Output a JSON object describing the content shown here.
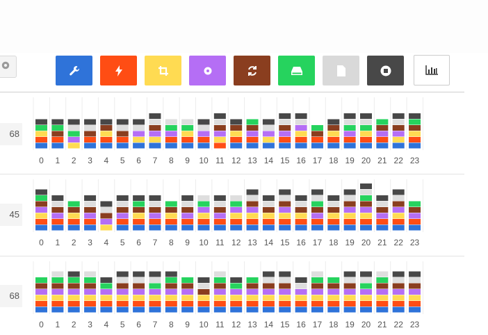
{
  "toolbar": {
    "buttons": [
      {
        "name": "wrench-button",
        "icon": "wrench-icon",
        "color": "#2f73d9"
      },
      {
        "name": "lightning-button",
        "icon": "lightning-icon",
        "color": "#ff4d14"
      },
      {
        "name": "crop-button",
        "icon": "crop-icon",
        "color": "#ffdb52"
      },
      {
        "name": "settings-button",
        "icon": "gear-icon",
        "color": "#b56ef5"
      },
      {
        "name": "refresh-button",
        "icon": "refresh-icon",
        "color": "#8a3e1f"
      },
      {
        "name": "drive-button",
        "icon": "hard-drive-icon",
        "color": "#26d35e"
      },
      {
        "name": "file-button",
        "icon": "file-icon",
        "color": "#d9d9d9"
      },
      {
        "name": "stop-button",
        "icon": "stop-icon",
        "color": "#484848"
      },
      {
        "name": "chart-button",
        "icon": "bar-chart-icon",
        "color": "#ffffff"
      }
    ]
  },
  "rows": [
    {
      "value": "68"
    },
    {
      "value": "45"
    },
    {
      "value": "68"
    }
  ],
  "chart_data": [
    {
      "type": "bar",
      "stacked": true,
      "categories": [
        "0",
        "1",
        "2",
        "3",
        "4",
        "5",
        "6",
        "7",
        "8",
        "9",
        "10",
        "11",
        "12",
        "13",
        "14",
        "15",
        "16",
        "17",
        "18",
        "19",
        "20",
        "21",
        "22",
        "23"
      ],
      "series_colors": [
        "#2f73d9",
        "#ff4d14",
        "#ffdb52",
        "#b56ef5",
        "#8a3e1f",
        "#26d35e",
        "#dedede",
        "#484848"
      ],
      "values": [
        [
          1,
          1,
          1,
          0,
          0,
          1,
          0,
          1
        ],
        [
          1,
          1,
          0,
          0,
          1,
          1,
          0,
          1
        ],
        [
          0,
          0,
          1,
          1,
          0,
          1,
          1,
          1
        ],
        [
          1,
          1,
          0,
          0,
          1,
          0,
          1,
          1
        ],
        [
          1,
          1,
          1,
          0,
          1,
          0,
          0,
          1
        ],
        [
          1,
          1,
          0,
          0,
          1,
          0,
          1,
          1
        ],
        [
          1,
          0,
          1,
          1,
          0,
          0,
          1,
          1
        ],
        [
          1,
          0,
          1,
          1,
          1,
          0,
          1,
          1
        ],
        [
          1,
          1,
          0,
          1,
          0,
          1,
          1,
          0
        ],
        [
          1,
          1,
          1,
          0,
          0,
          1,
          1,
          0
        ],
        [
          1,
          1,
          0,
          1,
          0,
          0,
          1,
          1
        ],
        [
          0,
          1,
          1,
          1,
          1,
          0,
          1,
          1
        ],
        [
          1,
          1,
          1,
          0,
          1,
          0,
          0,
          1
        ],
        [
          1,
          1,
          0,
          1,
          1,
          1,
          0,
          0
        ],
        [
          1,
          0,
          1,
          1,
          0,
          0,
          1,
          1
        ],
        [
          1,
          1,
          0,
          1,
          1,
          0,
          1,
          1
        ],
        [
          1,
          1,
          1,
          1,
          0,
          0,
          1,
          1
        ],
        [
          1,
          1,
          0,
          0,
          1,
          1,
          0,
          0
        ],
        [
          1,
          1,
          1,
          0,
          1,
          0,
          0,
          1
        ],
        [
          1,
          1,
          0,
          1,
          0,
          1,
          1,
          1
        ],
        [
          1,
          1,
          1,
          0,
          0,
          1,
          1,
          1
        ],
        [
          1,
          1,
          0,
          1,
          1,
          1,
          0,
          0
        ],
        [
          1,
          0,
          1,
          1,
          1,
          0,
          1,
          1
        ],
        [
          1,
          1,
          1,
          0,
          1,
          1,
          0,
          1
        ]
      ]
    },
    {
      "type": "bar",
      "stacked": true,
      "categories": [
        "0",
        "1",
        "2",
        "3",
        "4",
        "5",
        "6",
        "7",
        "8",
        "9",
        "10",
        "11",
        "12",
        "13",
        "14",
        "15",
        "16",
        "17",
        "18",
        "19",
        "20",
        "21",
        "22",
        "23"
      ],
      "series_colors": [
        "#2f73d9",
        "#ff4d14",
        "#ffdb52",
        "#b56ef5",
        "#8a3e1f",
        "#26d35e",
        "#dedede",
        "#484848"
      ],
      "values": [
        [
          1,
          1,
          1,
          1,
          1,
          1,
          0,
          1
        ],
        [
          1,
          1,
          0,
          1,
          1,
          0,
          1,
          1
        ],
        [
          1,
          1,
          1,
          0,
          1,
          1,
          0,
          0
        ],
        [
          1,
          1,
          0,
          1,
          1,
          0,
          1,
          1
        ],
        [
          0,
          0,
          1,
          1,
          1,
          0,
          1,
          1
        ],
        [
          1,
          1,
          0,
          1,
          1,
          0,
          1,
          1
        ],
        [
          1,
          1,
          1,
          0,
          1,
          1,
          0,
          1
        ],
        [
          1,
          1,
          0,
          1,
          1,
          0,
          1,
          1
        ],
        [
          1,
          1,
          1,
          0,
          1,
          1,
          0,
          0
        ],
        [
          1,
          1,
          0,
          1,
          1,
          0,
          1,
          1
        ],
        [
          1,
          1,
          1,
          1,
          0,
          1,
          1,
          0
        ],
        [
          1,
          1,
          0,
          1,
          1,
          0,
          1,
          1
        ],
        [
          1,
          1,
          1,
          1,
          0,
          1,
          1,
          0
        ],
        [
          1,
          1,
          1,
          1,
          1,
          0,
          1,
          1
        ],
        [
          1,
          1,
          1,
          0,
          1,
          0,
          1,
          1
        ],
        [
          1,
          1,
          1,
          1,
          1,
          0,
          1,
          1
        ],
        [
          1,
          1,
          1,
          0,
          1,
          0,
          1,
          1
        ],
        [
          1,
          1,
          0,
          1,
          1,
          1,
          1,
          1
        ],
        [
          1,
          1,
          1,
          0,
          1,
          0,
          1,
          1
        ],
        [
          1,
          1,
          1,
          1,
          1,
          0,
          1,
          1
        ],
        [
          1,
          1,
          1,
          1,
          1,
          1,
          1,
          1
        ],
        [
          1,
          1,
          0,
          1,
          1,
          0,
          1,
          1
        ],
        [
          1,
          1,
          1,
          1,
          1,
          0,
          1,
          1
        ],
        [
          1,
          1,
          0,
          1,
          1,
          1,
          0,
          0
        ]
      ]
    },
    {
      "type": "bar",
      "stacked": true,
      "categories": [
        "0",
        "1",
        "2",
        "3",
        "4",
        "5",
        "6",
        "7",
        "8",
        "9",
        "10",
        "11",
        "12",
        "13",
        "14",
        "15",
        "16",
        "17",
        "18",
        "19",
        "20",
        "21",
        "22",
        "23"
      ],
      "series_colors": [
        "#2f73d9",
        "#ff4d14",
        "#ffdb52",
        "#b56ef5",
        "#8a3e1f",
        "#26d35e",
        "#dedede",
        "#484848"
      ],
      "values": [
        [
          1,
          1,
          1,
          1,
          1,
          1,
          0,
          0
        ],
        [
          1,
          1,
          1,
          1,
          1,
          1,
          1,
          0
        ],
        [
          1,
          1,
          1,
          1,
          1,
          1,
          0,
          1
        ],
        [
          1,
          1,
          1,
          1,
          1,
          1,
          1,
          0
        ],
        [
          1,
          1,
          1,
          1,
          0,
          1,
          0,
          1
        ],
        [
          1,
          1,
          1,
          1,
          1,
          0,
          1,
          1
        ],
        [
          1,
          1,
          1,
          1,
          1,
          0,
          1,
          1
        ],
        [
          1,
          1,
          1,
          1,
          0,
          1,
          1,
          1
        ],
        [
          1,
          1,
          1,
          1,
          1,
          1,
          0,
          1
        ],
        [
          1,
          1,
          1,
          1,
          1,
          1,
          0,
          0
        ],
        [
          1,
          1,
          1,
          0,
          1,
          0,
          1,
          1
        ],
        [
          1,
          1,
          1,
          1,
          1,
          1,
          1,
          0
        ],
        [
          1,
          1,
          1,
          1,
          0,
          1,
          0,
          1
        ],
        [
          1,
          1,
          1,
          1,
          1,
          1,
          0,
          0
        ],
        [
          1,
          1,
          1,
          1,
          1,
          0,
          1,
          1
        ],
        [
          1,
          1,
          1,
          1,
          1,
          0,
          1,
          1
        ],
        [
          1,
          1,
          1,
          1,
          0,
          0,
          1,
          1
        ],
        [
          1,
          1,
          1,
          1,
          1,
          1,
          1,
          0
        ],
        [
          1,
          1,
          1,
          1,
          1,
          1,
          0,
          0
        ],
        [
          1,
          1,
          1,
          1,
          1,
          0,
          1,
          1
        ],
        [
          1,
          1,
          1,
          1,
          0,
          1,
          1,
          1
        ],
        [
          1,
          1,
          1,
          1,
          1,
          1,
          1,
          0
        ],
        [
          1,
          1,
          1,
          1,
          1,
          0,
          1,
          1
        ],
        [
          1,
          1,
          1,
          1,
          1,
          0,
          1,
          1
        ]
      ]
    }
  ]
}
